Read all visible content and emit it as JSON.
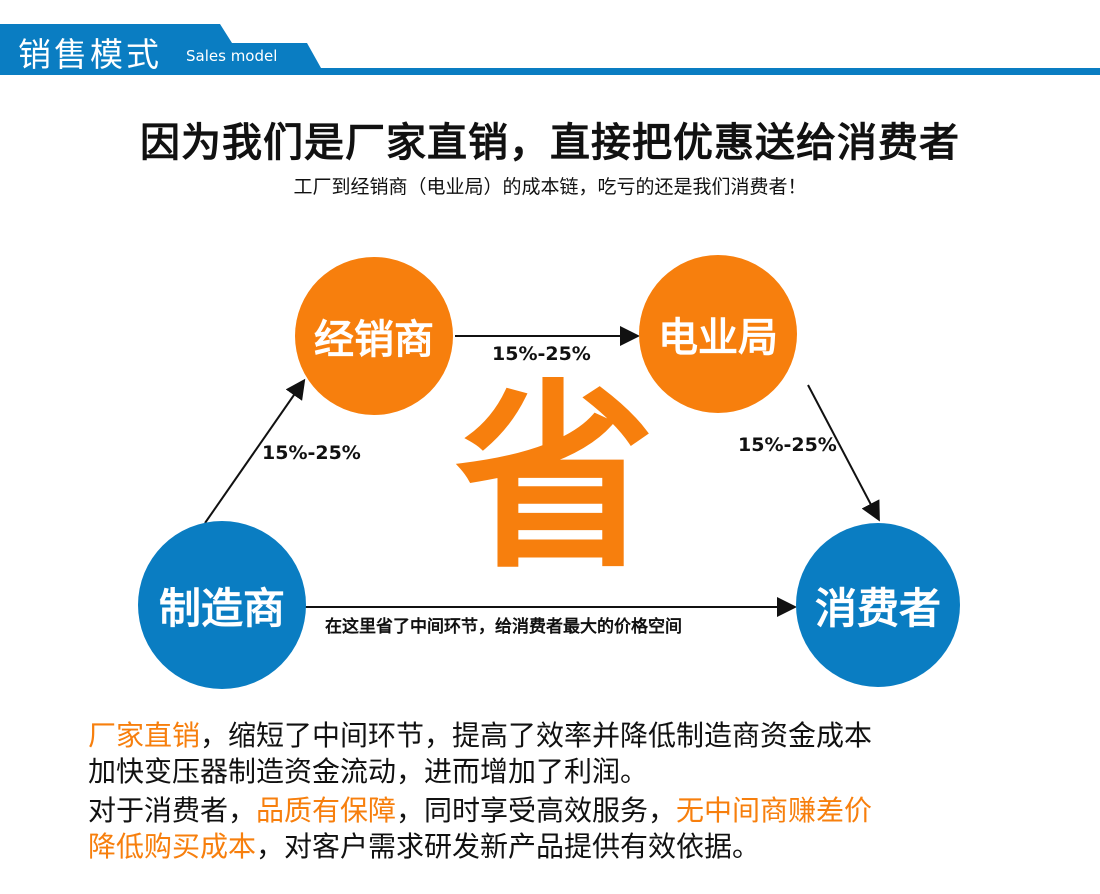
{
  "header": {
    "title": "销售模式",
    "subtitle": "Sales model"
  },
  "headline": "因为我们是厂家直销，直接把优惠送给消费者",
  "subline": "工厂到经销商（电业局）的成本链，吃亏的还是我们消费者！",
  "diagram": {
    "nodes": {
      "dealer": "经销商",
      "power_bureau": "电业局",
      "manufacturer": "制造商",
      "consumer": "消费者"
    },
    "edges": {
      "manufacturer_dealer": "15%-25%",
      "dealer_bureau": "15%-25%",
      "bureau_consumer": "15%-25%",
      "direct": "在这里省了中间环节，给消费者最大的价格空间"
    },
    "center": "省"
  },
  "paragraphs": {
    "p1_hl": "厂家直销",
    "p1_rest": "，缩短了中间环节，提高了效率并降低制造商资金成本",
    "p1_line2": "加快变压器制造资金流动，进而增加了利润。",
    "p2_a": "对于消费者，",
    "p2_hl1": "品质有保障",
    "p2_b": "，同时享受高效服务，",
    "p2_hl2": "无中间商赚差价",
    "p2_hl3": "降低购买成本",
    "p2_c": "，对客户需求研发新产品提供有效依据。"
  },
  "colors": {
    "blue": "#0a7dc2",
    "orange": "#f77f0d"
  }
}
